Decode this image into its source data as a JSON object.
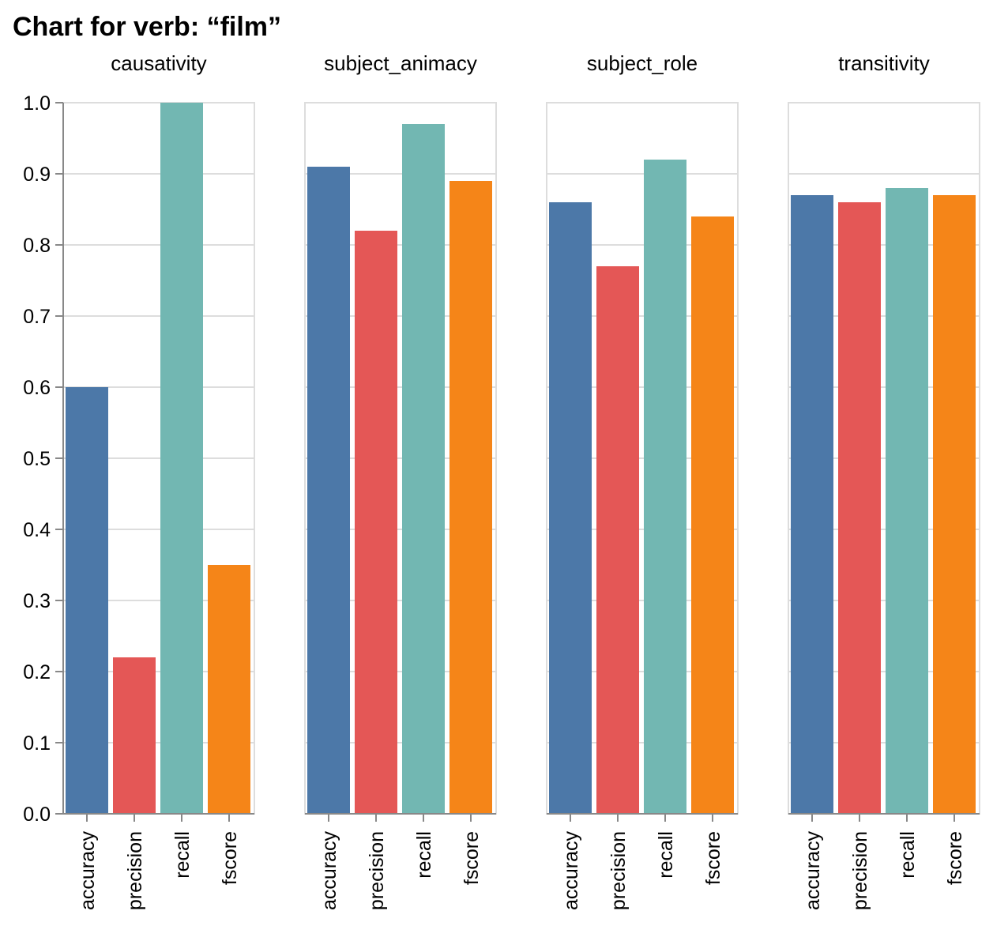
{
  "chart_data": {
    "type": "bar",
    "title": "Chart for verb: “film”",
    "ylim": [
      0,
      1
    ],
    "yticks": [
      "0.0",
      "0.1",
      "0.2",
      "0.3",
      "0.4",
      "0.5",
      "0.6",
      "0.7",
      "0.8",
      "0.9",
      "1.0"
    ],
    "categories": [
      "accuracy",
      "precision",
      "recall",
      "fscore"
    ],
    "colors": {
      "accuracy": "#4c78a8",
      "precision": "#e45756",
      "recall": "#72b7b2",
      "fscore": "#f58518"
    },
    "grid": true,
    "facets": [
      {
        "name": "causativity",
        "values": [
          0.6,
          0.22,
          1.0,
          0.35
        ]
      },
      {
        "name": "subject_animacy",
        "values": [
          0.91,
          0.82,
          0.97,
          0.89
        ]
      },
      {
        "name": "subject_role",
        "values": [
          0.86,
          0.77,
          0.92,
          0.84
        ]
      },
      {
        "name": "transitivity",
        "values": [
          0.87,
          0.86,
          0.88,
          0.87
        ]
      }
    ]
  }
}
